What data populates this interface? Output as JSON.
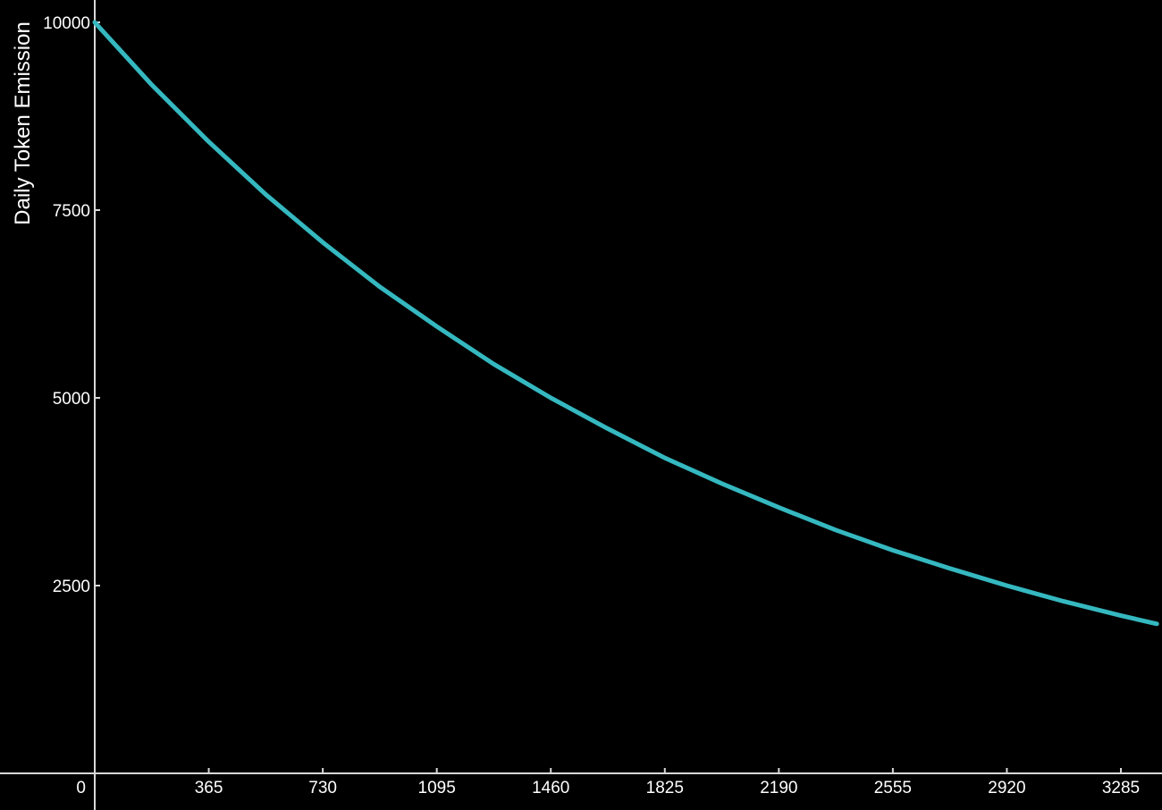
{
  "chart_data": {
    "type": "line",
    "title": "",
    "xlabel": "",
    "ylabel": "Daily Token Emission",
    "xlim": [
      0,
      3400
    ],
    "ylim": [
      0,
      10000
    ],
    "x_ticks": [
      0,
      365,
      730,
      1095,
      1460,
      1825,
      2190,
      2555,
      2920,
      3285
    ],
    "x_tick_labels": [
      "0",
      "365",
      "730",
      "1095",
      "1460",
      "1825",
      "2190",
      "2555",
      "2920",
      "3285"
    ],
    "y_ticks": [
      2500,
      5000,
      7500,
      10000
    ],
    "y_tick_labels": [
      "2500",
      "5000",
      "7500",
      "10000"
    ],
    "grid": false,
    "series": [
      {
        "x": [
          0,
          182,
          365,
          547,
          730,
          912,
          1095,
          1277,
          1460,
          1642,
          1825,
          2007,
          2190,
          2372,
          2555,
          2737,
          2920,
          3102,
          3285,
          3400
        ],
        "y": [
          10000,
          9170,
          8410,
          7710,
          7070,
          6480,
          5950,
          5450,
          5000,
          4590,
          4200,
          3860,
          3540,
          3240,
          2970,
          2730,
          2500,
          2290,
          2100,
          1990
        ],
        "color": "#35b8c0"
      }
    ]
  }
}
